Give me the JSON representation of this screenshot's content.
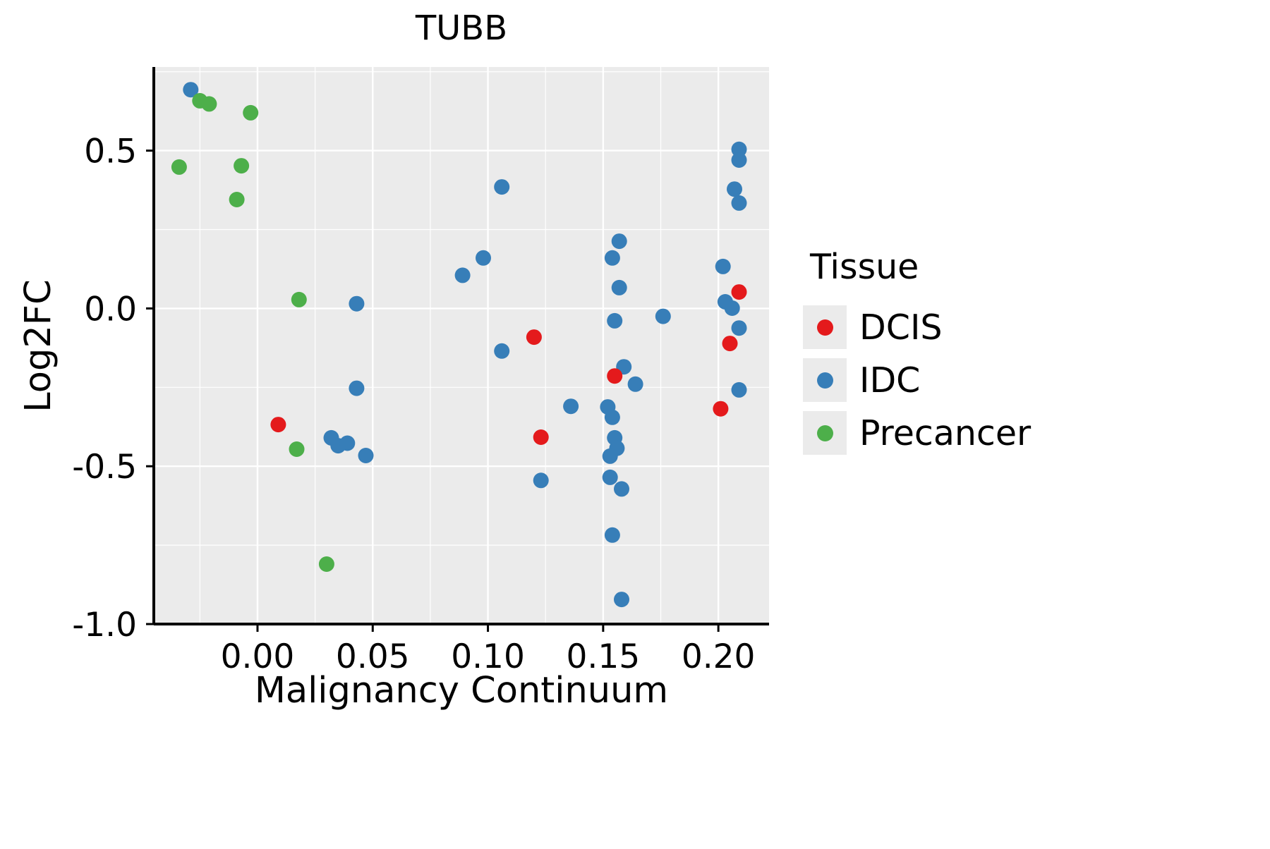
{
  "style": {
    "panel_bg": "#EBEBEB",
    "grid_color": "#FFFFFF",
    "axis_color": "#000000",
    "point_radius": 11,
    "major_grid_width": 2.4,
    "minor_grid_width": 1.2
  },
  "legend": {
    "title": "Tissue",
    "entries": [
      {
        "label": "DCIS",
        "color": "#E41A1C"
      },
      {
        "label": "IDC",
        "color": "#377EB8"
      },
      {
        "label": "Precancer",
        "color": "#4DAF4A"
      }
    ]
  },
  "chart_data": {
    "type": "scatter",
    "title": "TUBB",
    "xlabel": "Malignancy Continuum",
    "ylabel": "Log2FC",
    "xlim": [
      -0.045,
      0.222
    ],
    "ylim": [
      -1.0,
      0.765
    ],
    "xticks": [
      0.0,
      0.05,
      0.1,
      0.15,
      0.2
    ],
    "xtick_labels": [
      "0.00",
      "0.05",
      "0.10",
      "0.15",
      "0.20"
    ],
    "yticks": [
      0.5,
      0.0,
      -0.5,
      -1.0
    ],
    "ytick_labels": [
      "0.5",
      "0.0",
      "-0.5",
      "-1.0"
    ],
    "xminor": [
      -0.025,
      0.025,
      0.075,
      0.125,
      0.175
    ],
    "yminor": [
      0.75,
      0.25,
      -0.25,
      -0.75
    ],
    "grid": true,
    "legend_position": "right",
    "legend_title": "Tissue",
    "series": [
      {
        "name": "IDC",
        "color": "#377EB8",
        "points": [
          [
            -0.029,
            0.693
          ],
          [
            0.043,
            0.015
          ],
          [
            0.043,
            -0.253
          ],
          [
            0.032,
            -0.41
          ],
          [
            0.035,
            -0.435
          ],
          [
            0.039,
            -0.427
          ],
          [
            0.047,
            -0.466
          ],
          [
            0.089,
            0.105
          ],
          [
            0.098,
            0.16
          ],
          [
            0.106,
            0.385
          ],
          [
            0.106,
            -0.135
          ],
          [
            0.123,
            -0.545
          ],
          [
            0.136,
            -0.31
          ],
          [
            0.157,
            0.213
          ],
          [
            0.154,
            0.16
          ],
          [
            0.157,
            0.066
          ],
          [
            0.155,
            -0.039
          ],
          [
            0.159,
            -0.185
          ],
          [
            0.164,
            -0.24
          ],
          [
            0.152,
            -0.312
          ],
          [
            0.154,
            -0.345
          ],
          [
            0.155,
            -0.41
          ],
          [
            0.156,
            -0.443
          ],
          [
            0.153,
            -0.468
          ],
          [
            0.153,
            -0.535
          ],
          [
            0.158,
            -0.572
          ],
          [
            0.154,
            -0.718
          ],
          [
            0.158,
            -0.922
          ],
          [
            0.176,
            -0.025
          ],
          [
            0.202,
            0.133
          ],
          [
            0.203,
            0.021
          ],
          [
            0.206,
            0.001
          ],
          [
            0.209,
            0.504
          ],
          [
            0.209,
            0.47
          ],
          [
            0.207,
            0.378
          ],
          [
            0.209,
            0.334
          ],
          [
            0.209,
            -0.062
          ],
          [
            0.209,
            -0.258
          ]
        ]
      },
      {
        "name": "Precancer",
        "color": "#4DAF4A",
        "points": [
          [
            -0.025,
            0.658
          ],
          [
            -0.021,
            0.648
          ],
          [
            -0.003,
            0.62
          ],
          [
            -0.034,
            0.448
          ],
          [
            -0.007,
            0.452
          ],
          [
            -0.009,
            0.345
          ],
          [
            0.018,
            0.028
          ],
          [
            0.017,
            -0.446
          ],
          [
            0.03,
            -0.81
          ]
        ]
      },
      {
        "name": "DCIS",
        "color": "#E41A1C",
        "points": [
          [
            0.009,
            -0.368
          ],
          [
            0.12,
            -0.091
          ],
          [
            0.123,
            -0.408
          ],
          [
            0.155,
            -0.214
          ],
          [
            0.209,
            0.052
          ],
          [
            0.205,
            -0.111
          ],
          [
            0.201,
            -0.318
          ]
        ]
      }
    ]
  }
}
